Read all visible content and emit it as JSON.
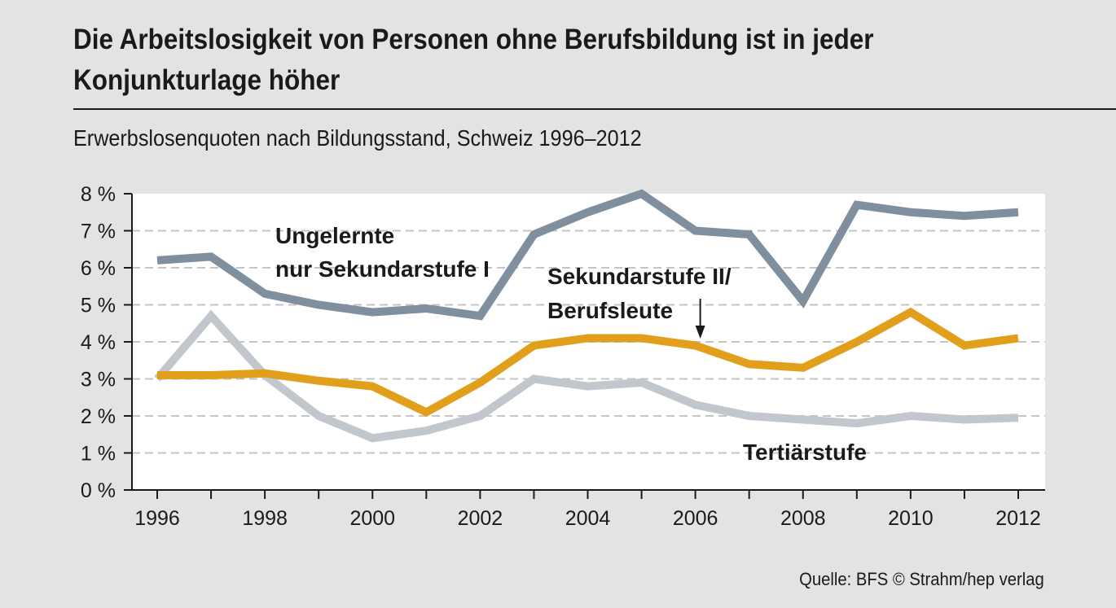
{
  "header": {
    "title_line1": "Die Arbeitslosigkeit von Personen ohne Berufsbildung ist in jeder",
    "title_line2": "Konjunkturlage höher",
    "subtitle": "Erwerbslosenquoten nach Bildungsstand, Schweiz 1996–2012"
  },
  "footer": {
    "source": "Quelle: BFS  © Strahm/hep verlag"
  },
  "chart_data": {
    "type": "line",
    "title": "Die Arbeitslosigkeit von Personen ohne Berufsbildung ist in jeder Konjunkturlage höher",
    "subtitle": "Erwerbslosenquoten nach Bildungsstand, Schweiz 1996–2012",
    "xlabel": "",
    "ylabel": "",
    "x": [
      1996,
      1997,
      1998,
      1999,
      2000,
      2001,
      2002,
      2003,
      2004,
      2005,
      2006,
      2007,
      2008,
      2009,
      2010,
      2011,
      2012
    ],
    "xticks": [
      "1996",
      "1998",
      "2000",
      "2002",
      "2004",
      "2006",
      "2008",
      "2010",
      "2012"
    ],
    "ylim": [
      0,
      8
    ],
    "yticks": [
      "0 %",
      "1 %",
      "2 %",
      "3 %",
      "4 %",
      "5 %",
      "6 %",
      "7 %",
      "8 %"
    ],
    "grid": "horizontal dashed",
    "series": [
      {
        "name": "Ungelernte nur Sekundarstufe I",
        "label_lines": [
          "Ungelernte",
          "nur Sekundarstufe I"
        ],
        "color": "#7f8f9e",
        "values": [
          6.2,
          6.3,
          5.3,
          5.0,
          4.8,
          4.9,
          4.7,
          6.9,
          7.5,
          8.0,
          7.0,
          6.9,
          5.1,
          7.7,
          7.5,
          7.4,
          7.5
        ]
      },
      {
        "name": "Sekundarstufe II/ Berufsleute",
        "label_lines": [
          "Sekundarstufe II/",
          "Berufsleute"
        ],
        "color": "#e19f1c",
        "values": [
          3.1,
          3.1,
          3.15,
          2.95,
          2.8,
          2.1,
          2.9,
          3.9,
          4.1,
          4.1,
          3.9,
          3.4,
          3.3,
          4.0,
          4.8,
          3.9,
          4.1
        ]
      },
      {
        "name": "Tertiärstufe",
        "label_lines": [
          "Tertiärstufe"
        ],
        "color": "#c2c7cd",
        "values": [
          3.0,
          4.7,
          3.1,
          2.0,
          1.4,
          1.6,
          2.0,
          3.0,
          2.8,
          2.9,
          2.3,
          2.0,
          1.9,
          1.8,
          2.0,
          1.9,
          1.95
        ]
      }
    ],
    "annotations": [
      {
        "text": "arrow pointing from 'Sekundarstufe II/ Berufsleute' label to the line at 2006",
        "target_x": 2006
      }
    ]
  }
}
